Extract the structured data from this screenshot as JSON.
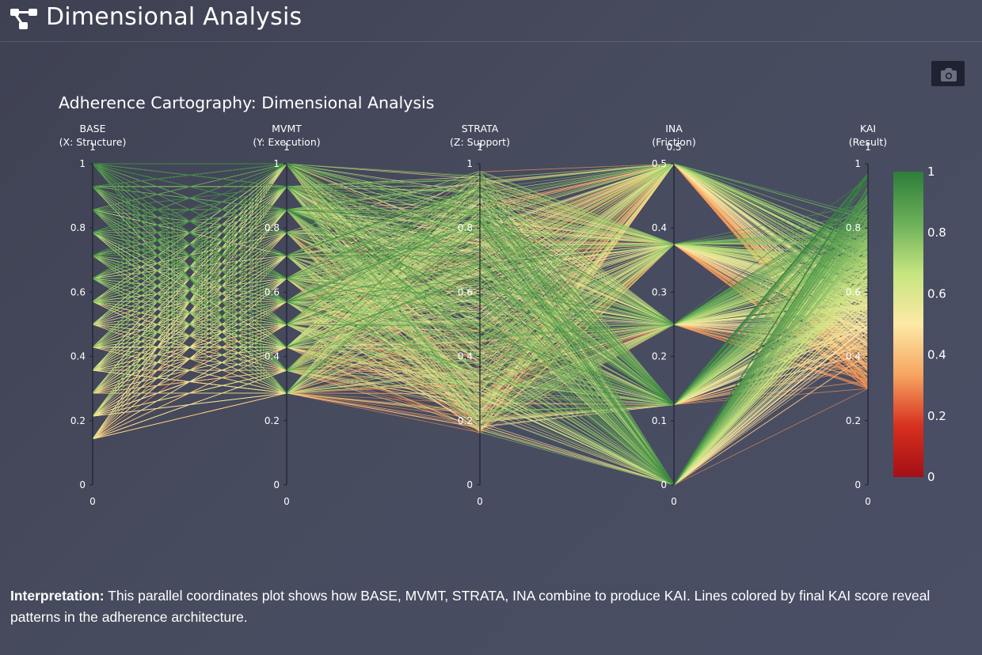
{
  "header": {
    "title": "Dimensional Analysis",
    "icon": "hierarchy-icon"
  },
  "toolbar": {
    "camera_icon": "camera-icon"
  },
  "chart_data": {
    "type": "parallel_coordinates",
    "title": "Adherence Cartography: Dimensional Analysis",
    "dimensions": [
      {
        "key": "base",
        "name": "BASE",
        "subtitle": "(X: Structure)",
        "range": [
          0,
          1
        ],
        "ticks": [
          "1",
          "0.8",
          "0.6",
          "0.4",
          "0.2",
          "0"
        ],
        "tick_values": [
          1,
          0.8,
          0.6,
          0.4,
          0.2,
          0
        ],
        "range_max_label": "1",
        "range_min_label": "0"
      },
      {
        "key": "mvmt",
        "name": "MVMT",
        "subtitle": "(Y: Execution)",
        "range": [
          0,
          1
        ],
        "ticks": [
          "1",
          "0.8",
          "0.6",
          "0.4",
          "0.2",
          "0"
        ],
        "tick_values": [
          1,
          0.8,
          0.6,
          0.4,
          0.2,
          0
        ],
        "range_max_label": "1",
        "range_min_label": "0"
      },
      {
        "key": "strata",
        "name": "STRATA",
        "subtitle": "(Z: Support)",
        "range": [
          0,
          1
        ],
        "ticks": [
          "1",
          "0.8",
          "0.6",
          "0.4",
          "0.2",
          "0"
        ],
        "tick_values": [
          1,
          0.8,
          0.6,
          0.4,
          0.2,
          0
        ],
        "range_max_label": "1",
        "range_min_label": "0"
      },
      {
        "key": "ina",
        "name": "INA",
        "subtitle": "(Friction)",
        "range": [
          0,
          0.5
        ],
        "ticks": [
          "0.5",
          "0.4",
          "0.3",
          "0.2",
          "0.1",
          "0"
        ],
        "tick_values": [
          0.5,
          0.4,
          0.3,
          0.2,
          0.1,
          0
        ],
        "range_max_label": "0.5",
        "range_min_label": "0"
      },
      {
        "key": "kai",
        "name": "KAI",
        "subtitle": "(Result)",
        "range": [
          0,
          1
        ],
        "ticks": [
          "1",
          "0.8",
          "0.6",
          "0.4",
          "0.2",
          "0"
        ],
        "tick_values": [
          1,
          0.8,
          0.6,
          0.4,
          0.2,
          0
        ],
        "range_max_label": "1",
        "range_min_label": "0"
      }
    ],
    "levels": {
      "base": [
        1,
        0.929,
        0.857,
        0.786,
        0.714,
        0.643,
        0.571,
        0.5,
        0.429,
        0.357,
        0.286,
        0.214,
        0.143
      ],
      "mvmt": [
        1,
        0.929,
        0.857,
        0.786,
        0.714,
        0.643,
        0.571,
        0.5,
        0.429,
        0.357,
        0.286
      ],
      "ina": [
        0.5,
        0.375,
        0.25,
        0.125,
        0
      ]
    },
    "color_by": "KAI",
    "colorscale": [
      "#a50f15",
      "#d7301f",
      "#f6a460",
      "#fde9a6",
      "#c6e57f",
      "#6aaf59",
      "#2e7d3a"
    ],
    "colorbar": {
      "range": [
        0,
        1
      ],
      "ticks": [
        "1",
        "0.8",
        "0.6",
        "0.4",
        "0.2",
        "0"
      ],
      "tick_values": [
        1,
        0.8,
        0.6,
        0.4,
        0.2,
        0
      ]
    }
  },
  "footer": {
    "label": "Interpretation:",
    "text": " This parallel coordinates plot shows how BASE, MVMT, STRATA, INA combine to produce KAI. Lines colored by final KAI score reveal patterns in the adherence architecture."
  }
}
